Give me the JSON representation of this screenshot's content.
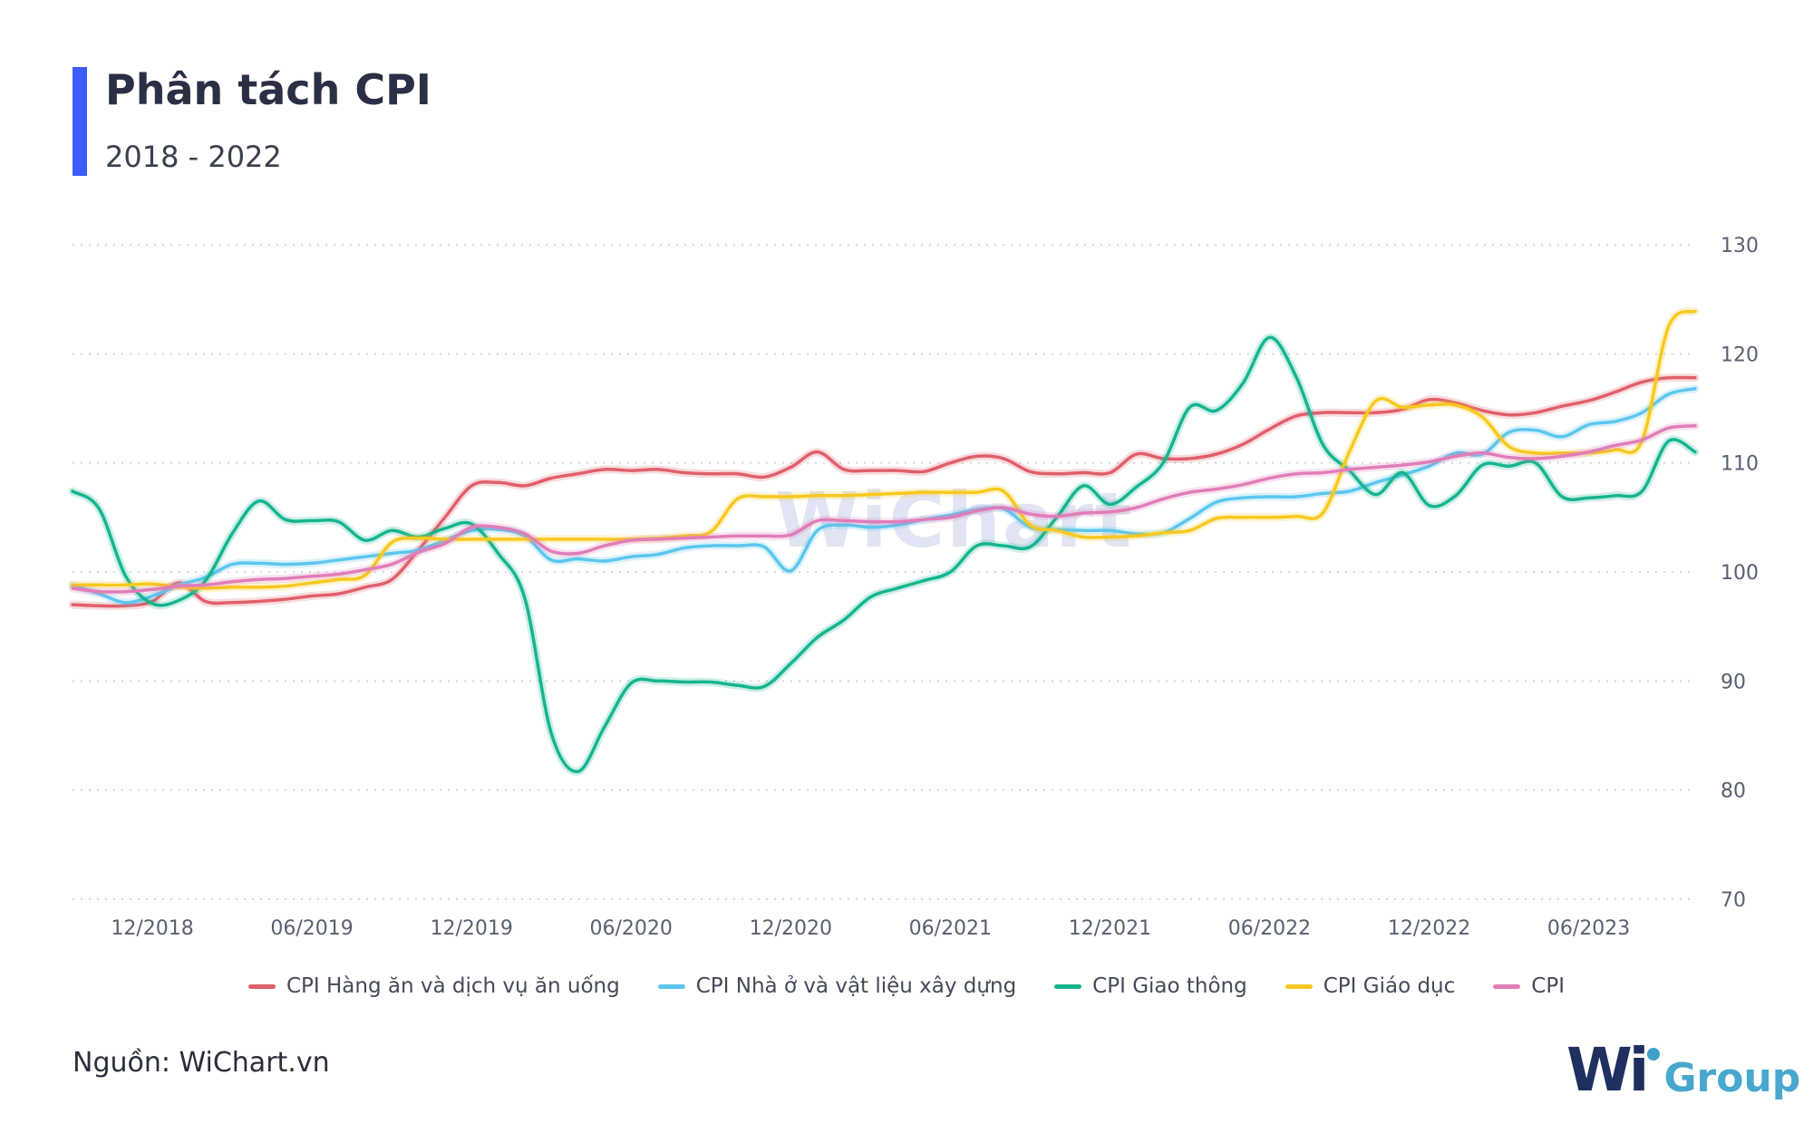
{
  "header": {
    "title": "Phân tách CPI",
    "subtitle": "2018 - 2022"
  },
  "footer": {
    "source": "Nguồn: WiChart.vn",
    "logo_mark": "Wi",
    "logo_text": "Group"
  },
  "watermark": "WiChart",
  "colors": {
    "accent": "#3b5cff",
    "grid": "#c9ccd3",
    "axis_text": "#5a6070"
  },
  "chart_data": {
    "type": "line",
    "title": "Phân tách CPI",
    "subtitle": "2018 - 2022",
    "xlabel": "",
    "ylabel": "",
    "ylim": [
      70,
      130
    ],
    "yticks": [
      70,
      80,
      90,
      100,
      110,
      120,
      130
    ],
    "y_axis_side": "right",
    "grid": "horizontal dotted",
    "legend_position": "bottom",
    "x_range": [
      "2018-09",
      "2023-10"
    ],
    "x_tick_labels": [
      "12/2018",
      "06/2019",
      "12/2019",
      "06/2020",
      "12/2020",
      "06/2021",
      "12/2021",
      "06/2022",
      "12/2022",
      "06/2023"
    ],
    "x_tick_months": [
      "2018-12",
      "2019-06",
      "2019-12",
      "2020-06",
      "2020-12",
      "2021-06",
      "2021-12",
      "2022-06",
      "2022-12",
      "2023-06"
    ],
    "x": [
      "2018-09",
      "2018-10",
      "2018-11",
      "2018-12",
      "2019-01",
      "2019-02",
      "2019-03",
      "2019-04",
      "2019-05",
      "2019-06",
      "2019-07",
      "2019-08",
      "2019-09",
      "2019-10",
      "2019-11",
      "2019-12",
      "2020-01",
      "2020-02",
      "2020-03",
      "2020-04",
      "2020-05",
      "2020-06",
      "2020-07",
      "2020-08",
      "2020-09",
      "2020-10",
      "2020-11",
      "2020-12",
      "2021-01",
      "2021-02",
      "2021-03",
      "2021-04",
      "2021-05",
      "2021-06",
      "2021-07",
      "2021-08",
      "2021-09",
      "2021-10",
      "2021-11",
      "2021-12",
      "2022-01",
      "2022-02",
      "2022-03",
      "2022-04",
      "2022-05",
      "2022-06",
      "2022-07",
      "2022-08",
      "2022-09",
      "2022-10",
      "2022-11",
      "2022-12",
      "2023-01",
      "2023-02",
      "2023-03",
      "2023-04",
      "2023-05",
      "2023-06",
      "2023-07",
      "2023-08",
      "2023-09",
      "2023-10"
    ],
    "series": [
      {
        "name": "CPI Hàng ăn và dịch vụ ăn uống",
        "color": "#e05f6b",
        "values": [
          97.0,
          96.9,
          96.9,
          97.3,
          99.0,
          97.3,
          97.2,
          97.3,
          97.5,
          97.8,
          98.0,
          98.6,
          99.3,
          102.0,
          105.0,
          107.9,
          108.2,
          107.9,
          108.6,
          109.0,
          109.4,
          109.3,
          109.4,
          109.1,
          109.0,
          109.0,
          108.7,
          109.6,
          111.0,
          109.4,
          109.3,
          109.3,
          109.2,
          110.0,
          110.6,
          110.4,
          109.2,
          109.0,
          109.1,
          109.1,
          110.8,
          110.4,
          110.4,
          110.8,
          111.7,
          113.1,
          114.3,
          114.6,
          114.6,
          114.6,
          114.9,
          115.8,
          115.5,
          114.8,
          114.4,
          114.6,
          115.2,
          115.7,
          116.5,
          117.4,
          117.8,
          117.8
        ]
      },
      {
        "name": "CPI Nhà ở và vật liệu xây dựng",
        "color": "#5bc6ee",
        "values": [
          98.8,
          98.0,
          97.2,
          97.8,
          98.8,
          99.5,
          100.7,
          100.8,
          100.7,
          100.8,
          101.1,
          101.4,
          101.7,
          102.0,
          102.9,
          103.8,
          103.9,
          103.3,
          101.1,
          101.2,
          101.0,
          101.4,
          101.6,
          102.2,
          102.4,
          102.4,
          102.3,
          100.1,
          103.8,
          104.3,
          104.1,
          104.3,
          104.8,
          105.2,
          105.7,
          105.8,
          104.1,
          103.9,
          103.8,
          103.8,
          103.5,
          103.6,
          104.9,
          106.4,
          106.8,
          106.9,
          106.9,
          107.2,
          107.4,
          108.2,
          108.9,
          109.7,
          110.9,
          110.8,
          112.8,
          113.0,
          112.4,
          113.5,
          113.8,
          114.6,
          116.3,
          116.8
        ]
      },
      {
        "name": "CPI Giao thông",
        "color": "#16b48f",
        "values": [
          107.4,
          105.8,
          99.6,
          97.1,
          97.4,
          99.2,
          103.5,
          106.5,
          104.8,
          104.7,
          104.6,
          102.9,
          103.8,
          103.2,
          104.0,
          104.4,
          101.7,
          97.6,
          85.2,
          81.7,
          85.8,
          89.8,
          90.0,
          89.9,
          89.9,
          89.6,
          89.5,
          91.6,
          94.0,
          95.6,
          97.7,
          98.5,
          99.2,
          100.0,
          102.4,
          102.4,
          102.3,
          105.0,
          107.9,
          106.2,
          107.8,
          110.0,
          115.1,
          114.8,
          117.3,
          121.5,
          117.9,
          111.7,
          109.3,
          107.1,
          109.1,
          106.1,
          107.0,
          109.8,
          109.7,
          110.0,
          106.9,
          106.8,
          107.0,
          107.4,
          112.0,
          111.0
        ]
      },
      {
        "name": "CPI Giáo dục",
        "color": "#f7c81e",
        "values": [
          98.8,
          98.8,
          98.8,
          98.9,
          98.6,
          98.5,
          98.6,
          98.6,
          98.7,
          99.0,
          99.3,
          99.7,
          102.7,
          103.1,
          103.0,
          103.0,
          103.0,
          103.0,
          103.0,
          103.0,
          103.0,
          103.0,
          103.1,
          103.3,
          103.7,
          106.7,
          106.9,
          106.9,
          107.0,
          107.0,
          107.1,
          107.2,
          107.3,
          107.3,
          107.3,
          107.4,
          104.3,
          103.8,
          103.2,
          103.2,
          103.3,
          103.6,
          103.8,
          104.9,
          105.0,
          105.0,
          105.1,
          105.4,
          111.0,
          115.7,
          115.1,
          115.3,
          115.3,
          114.2,
          111.5,
          110.9,
          110.9,
          110.9,
          111.2,
          112.0,
          122.5,
          123.9
        ]
      },
      {
        "name": "CPI",
        "color": "#e07db8",
        "values": [
          98.5,
          98.2,
          98.2,
          98.4,
          98.7,
          98.8,
          99.1,
          99.3,
          99.4,
          99.6,
          99.8,
          100.2,
          100.7,
          101.8,
          102.6,
          104.1,
          104.1,
          103.5,
          101.9,
          101.7,
          102.4,
          102.9,
          103.0,
          103.1,
          103.2,
          103.3,
          103.3,
          103.4,
          104.7,
          104.7,
          104.6,
          104.6,
          104.8,
          105.0,
          105.6,
          105.9,
          105.3,
          105.1,
          105.4,
          105.5,
          105.9,
          106.7,
          107.3,
          107.6,
          108.0,
          108.6,
          109.0,
          109.1,
          109.4,
          109.6,
          109.8,
          110.1,
          110.6,
          110.9,
          110.5,
          110.4,
          110.6,
          111.0,
          111.6,
          112.1,
          113.2,
          113.4
        ]
      }
    ]
  }
}
